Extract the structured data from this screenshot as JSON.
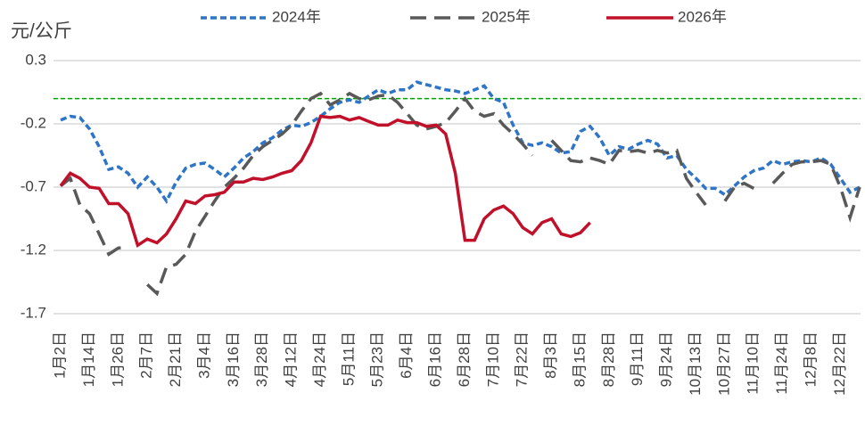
{
  "chart_data": {
    "type": "line",
    "y_label": "元/公斤",
    "categories": [
      "1月2日",
      null,
      null,
      "1月14日",
      null,
      null,
      "1月26日",
      null,
      null,
      "2月7日",
      null,
      null,
      "2月21日",
      null,
      null,
      "3月4日",
      null,
      null,
      "3月16日",
      null,
      null,
      "3月28日",
      null,
      null,
      "4月12日",
      null,
      null,
      "4月24日",
      null,
      null,
      "5月11日",
      null,
      null,
      "5月23日",
      null,
      null,
      "6月4日",
      null,
      null,
      "6月16日",
      null,
      null,
      "6月28日",
      null,
      null,
      "7月10日",
      null,
      null,
      "7月22日",
      null,
      null,
      "8月3日",
      null,
      null,
      "8月15日",
      null,
      null,
      "8月28日",
      null,
      null,
      "9月11日",
      null,
      null,
      "9月24日",
      null,
      null,
      "10月13日",
      null,
      null,
      "10月27日",
      null,
      null,
      "11月10日",
      null,
      null,
      "11月24日",
      null,
      null,
      "12月8日",
      null,
      null,
      "12月22日",
      null,
      null
    ],
    "series": [
      {
        "name": "2024年",
        "color": "#2e75c8",
        "dash": "short",
        "values": [
          -0.17,
          -0.14,
          -0.15,
          -0.24,
          -0.38,
          -0.56,
          -0.54,
          -0.59,
          -0.7,
          -0.62,
          -0.7,
          -0.81,
          -0.66,
          -0.55,
          -0.52,
          -0.51,
          -0.56,
          -0.62,
          -0.55,
          -0.47,
          -0.42,
          -0.35,
          -0.31,
          -0.25,
          -0.21,
          -0.22,
          -0.19,
          -0.14,
          -0.08,
          -0.03,
          -0.01,
          -0.03,
          0.02,
          0.07,
          0.04,
          0.07,
          0.07,
          0.13,
          0.11,
          0.09,
          0.07,
          0.06,
          0.04,
          0.07,
          0.1,
          0.0,
          -0.03,
          -0.21,
          -0.35,
          -0.37,
          -0.35,
          -0.38,
          -0.43,
          -0.42,
          -0.26,
          -0.22,
          -0.31,
          -0.45,
          -0.38,
          -0.4,
          -0.36,
          -0.33,
          -0.36,
          -0.47,
          -0.45,
          -0.56,
          -0.63,
          -0.71,
          -0.71,
          -0.76,
          -0.69,
          -0.62,
          -0.57,
          -0.55,
          -0.49,
          -0.52,
          -0.5,
          -0.49,
          -0.5,
          -0.47,
          -0.52,
          -0.63,
          -0.74,
          -0.7
        ]
      },
      {
        "name": "2025年",
        "color": "#595959",
        "dash": "long",
        "values": [
          -0.69,
          -0.63,
          -0.84,
          -0.91,
          -1.07,
          -1.23,
          -1.18,
          -1.18,
          null,
          -1.47,
          -1.54,
          -1.33,
          -1.31,
          -1.23,
          -1.05,
          -0.93,
          -0.81,
          -0.7,
          -0.63,
          -0.55,
          -0.45,
          -0.38,
          -0.33,
          -0.28,
          -0.21,
          -0.1,
          0.0,
          0.04,
          -0.05,
          -0.01,
          0.04,
          0.0,
          -0.01,
          0.02,
          0.03,
          -0.03,
          -0.12,
          -0.21,
          -0.24,
          -0.22,
          -0.19,
          -0.1,
          0.0,
          -0.1,
          -0.14,
          -0.12,
          -0.21,
          -0.28,
          -0.36,
          -0.45,
          null,
          -0.33,
          -0.41,
          -0.49,
          -0.5,
          -0.47,
          -0.49,
          -0.52,
          -0.41,
          -0.42,
          -0.41,
          -0.43,
          -0.41,
          -0.43,
          -0.41,
          -0.63,
          -0.74,
          -0.84,
          null,
          -0.81,
          -0.7,
          -0.67,
          -0.71,
          null,
          -0.67,
          -0.59,
          -0.52,
          -0.5,
          -0.5,
          -0.49,
          -0.52,
          -0.7,
          -0.94,
          -0.7
        ]
      },
      {
        "name": "2026年",
        "color": "#c0102a",
        "dash": "solid",
        "values": [
          -0.69,
          -0.59,
          -0.63,
          -0.7,
          -0.71,
          -0.83,
          -0.83,
          -0.91,
          -1.16,
          -1.11,
          -1.14,
          -1.07,
          -0.95,
          -0.81,
          -0.83,
          -0.77,
          -0.76,
          -0.74,
          -0.66,
          -0.66,
          -0.63,
          -0.64,
          -0.62,
          -0.59,
          -0.57,
          -0.49,
          -0.35,
          -0.14,
          -0.15,
          -0.14,
          -0.17,
          -0.15,
          -0.18,
          -0.21,
          -0.21,
          -0.17,
          -0.19,
          -0.19,
          -0.22,
          -0.21,
          -0.28,
          -0.59,
          -1.12,
          -1.12,
          -0.95,
          -0.88,
          -0.85,
          -0.91,
          -1.02,
          -1.07,
          -0.98,
          -0.95,
          -1.07,
          -1.09,
          -1.06,
          -0.98,
          null,
          null,
          null,
          null,
          null,
          null,
          null,
          null,
          null,
          null,
          null,
          null,
          null,
          null,
          null,
          null,
          null,
          null,
          null,
          null,
          null,
          null,
          null,
          null,
          null,
          null,
          null,
          null
        ]
      }
    ],
    "ylim": [
      -1.7,
      0.3
    ],
    "yticks": [
      0.3,
      -0.2,
      -0.7,
      -1.2,
      -1.7
    ],
    "grid": true,
    "reference_line": {
      "value": 0,
      "color": "#00a000"
    },
    "legend": "top"
  }
}
